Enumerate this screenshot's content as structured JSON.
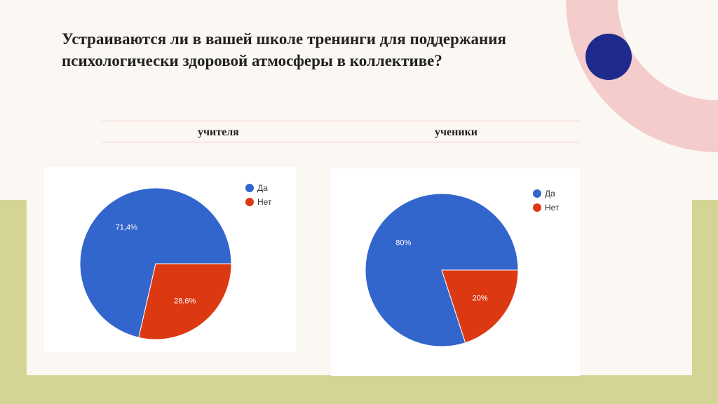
{
  "slide": {
    "title": "Устраиваются ли в вашей школе тренинги для поддержания психологически здоровой атмосферы в коллективе?",
    "columns": [
      "учителя",
      "ученики"
    ]
  },
  "colors": {
    "background": "#fbf8f4",
    "green_band": "#d4d494",
    "pink_arc": "#f4cccc",
    "navy_dot": "#1f2a8c",
    "yes": "#3366cc",
    "no": "#dc3912"
  },
  "chart_data": [
    {
      "type": "pie",
      "title": "",
      "legend": [
        "Да",
        "Нет"
      ],
      "legend_position": "top-right",
      "slices": [
        {
          "label": "Да",
          "value": 71.4,
          "text": "71,4%",
          "color": "#3366cc"
        },
        {
          "label": "Нет",
          "value": 28.6,
          "text": "28,6%",
          "color": "#dc3912"
        }
      ]
    },
    {
      "type": "pie",
      "title": "",
      "legend": [
        "Да",
        "Нет"
      ],
      "legend_position": "top-right",
      "slices": [
        {
          "label": "Да",
          "value": 80,
          "text": "80%",
          "color": "#3366cc"
        },
        {
          "label": "Нет",
          "value": 20,
          "text": "20%",
          "color": "#dc3912"
        }
      ]
    }
  ]
}
